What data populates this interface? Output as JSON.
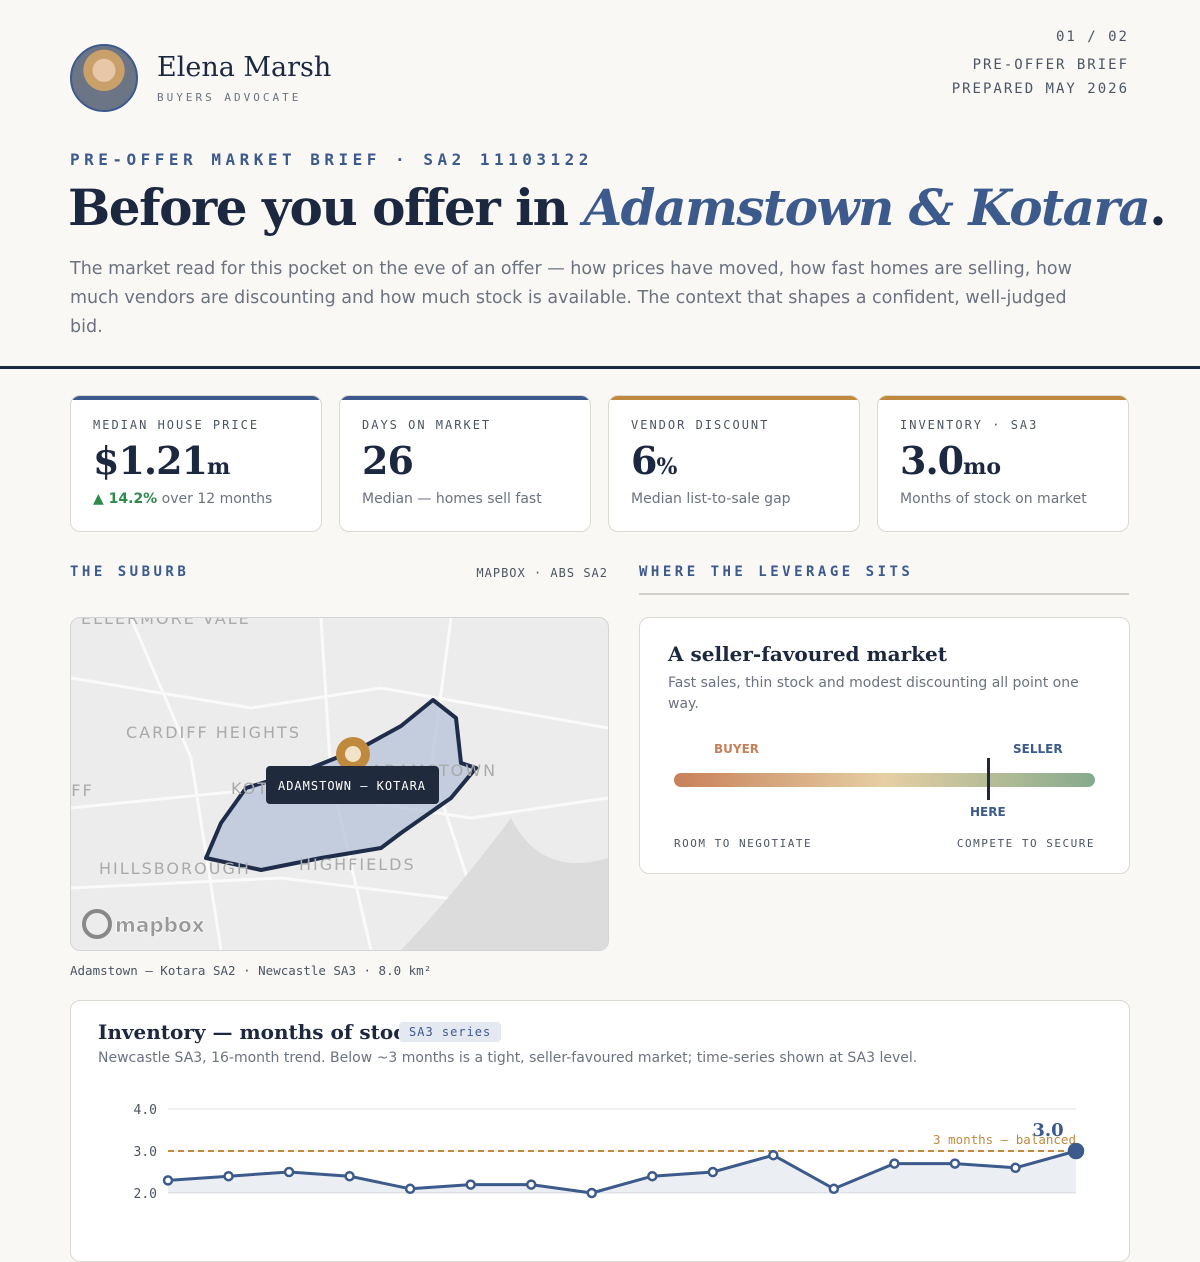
{
  "header": {
    "name": "Elena Marsh",
    "role": "BUYERS ADVOCATE",
    "page": "01 / 02",
    "doc": "PRE-OFFER BRIEF",
    "prepared": "PREPARED MAY 2026"
  },
  "hero": {
    "eyebrow": "PRE-OFFER MARKET BRIEF · SA2 11103122",
    "title_lead": "Before you offer in ",
    "title_place": "Adamstown & Kotara",
    "title_end": ".",
    "lede": "The market read for this pocket on the eve of an offer — how prices have moved, how fast homes are selling, how much vendors are discounting and how much stock is available. The context that shapes a confident, well-judged bid."
  },
  "cards": [
    {
      "label": "MEDIAN HOUSE PRICE",
      "value": "$1.21",
      "unit": "m",
      "change": "▲ 14.2%",
      "note": "over 12 months"
    },
    {
      "label": "DAYS ON MARKET",
      "value": "26",
      "note": "Median — homes sell fast"
    },
    {
      "label": "VENDOR DISCOUNT",
      "value": "6",
      "unit": "%",
      "note": "Median list-to-sale gap"
    },
    {
      "label": "INVENTORY · SA3",
      "value": "3.0",
      "unit": "mo",
      "note": "Months of stock on market"
    }
  ],
  "map": {
    "heading": "THE SUBURB",
    "source": "MAPBOX · ABS SA2",
    "places": [
      "ELLERMORE VALE",
      "CARDIFF HEIGHTS",
      "CARDIFF",
      "KOTARA",
      "ADAMSTOWN",
      "HILLSBOROUGH",
      "HIGHFIELDS"
    ],
    "pin_label": "ADAMSTOWN – KOTARA",
    "logo": "mapbox",
    "caption": "Adamstown – Kotara SA2 · Newcastle SA3 · 8.0 km²"
  },
  "leverage": {
    "heading": "WHERE THE LEVERAGE SITS",
    "title": "A seller-favoured market",
    "text": "Fast sales, thin stock and modest discounting all point one way.",
    "left": "BUYER",
    "right": "SELLER",
    "marker": "HERE",
    "left_note": "ROOM TO NEGOTIATE",
    "right_note": "COMPETE TO SECURE"
  },
  "inventory": {
    "title": "Inventory — months of stock",
    "badge": "SA3 series",
    "subtitle": "Newcastle SA3, 16-month trend. Below ~3 months is a tight, seller-favoured market; time-series shown at SA3 level.",
    "chart_data": {
      "type": "line",
      "values": [
        2.3,
        2.4,
        2.5,
        2.4,
        2.1,
        2.2,
        2.2,
        2.0,
        2.4,
        2.5,
        2.9,
        2.1,
        2.7,
        2.7,
        2.6,
        3.0
      ],
      "value_labels": [
        null,
        null,
        null,
        null,
        null,
        null,
        null,
        null,
        null,
        null,
        null,
        null,
        null,
        null,
        null,
        "3.0"
      ],
      "color": "#3d5a8c",
      "ylim": [
        2,
        4
      ],
      "yticks": [
        {
          "value": 2,
          "label": "2.0"
        },
        {
          "value": 3,
          "label": "3.0"
        },
        {
          "value": 4,
          "label": "4.0"
        }
      ],
      "grid": true,
      "reference": {
        "value": 3,
        "label": "3 months — balanced",
        "color": "#c08a3e"
      }
    }
  }
}
